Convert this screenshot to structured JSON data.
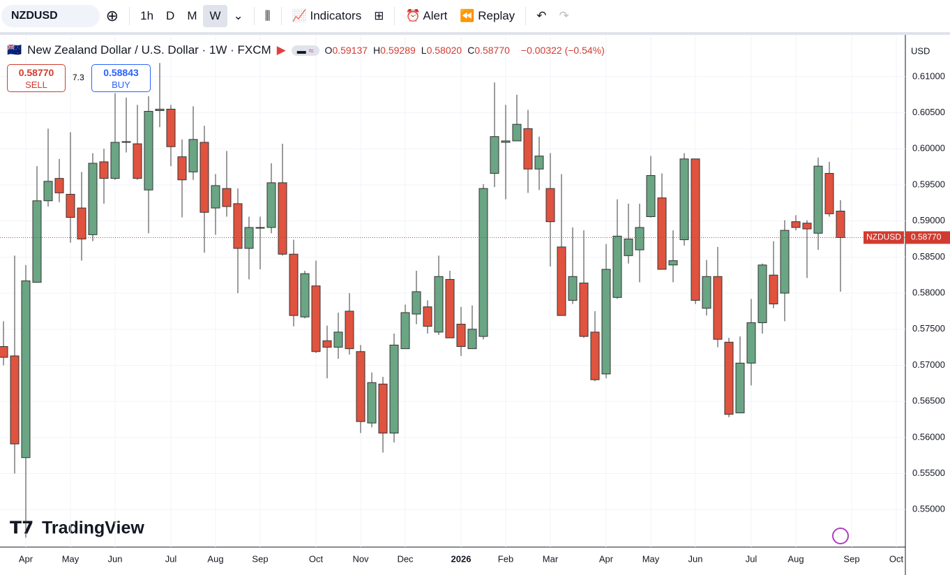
{
  "toolbar": {
    "symbol": "NZDUSD",
    "intervals": [
      "1h",
      "D",
      "M",
      "W"
    ],
    "active_interval": "W",
    "buttons": [
      "Indicators",
      "Alert",
      "Replay"
    ]
  },
  "legend": {
    "title": "New Zealand Dollar / U.S. Dollar · 1W · FXCM",
    "ohlc": [
      {
        "key": "O",
        "value": "0.59137"
      },
      {
        "key": "H",
        "value": "0.59289"
      },
      {
        "key": "L",
        "value": "0.58020"
      },
      {
        "key": "C",
        "value": "0.58770"
      }
    ],
    "change": "−0.00322 (−0.54%)"
  },
  "trade": {
    "sell_price": "0.58770",
    "sell": "SELL",
    "spread": "7.3",
    "buy_price": "0.58843",
    "buy": "BUY"
  },
  "currency": "USD",
  "brand": "TradingView",
  "chart_data": {
    "type": "candlestick",
    "categories": [
      null,
      null,
      "Apr",
      null,
      null,
      null,
      "May",
      null,
      null,
      null,
      "Jun",
      null,
      null,
      null,
      null,
      "Jul",
      null,
      null,
      null,
      "Aug",
      null,
      null,
      null,
      "Sep",
      null,
      null,
      null,
      null,
      "Oct",
      null,
      null,
      null,
      "Nov",
      null,
      null,
      null,
      "Dec",
      null,
      null,
      null,
      null,
      "2026",
      null,
      null,
      null,
      "Feb",
      null,
      null,
      null,
      "Mar",
      null,
      null,
      null,
      null,
      "Apr",
      null,
      null,
      null,
      "May",
      null,
      null,
      null,
      "Jun",
      null,
      null,
      null,
      null,
      "Jul",
      null,
      null,
      null,
      "Aug",
      null,
      null,
      null,
      null,
      "Sep",
      null,
      null,
      null,
      "Oct"
    ],
    "open": [
      0.5726,
      0.5713,
      0.5572,
      0.5815,
      0.5928,
      0.5959,
      0.5937,
      0.5918,
      0.5881,
      0.5982,
      0.5959,
      0.6009,
      0.6007,
      0.5943,
      0.6053,
      0.6055,
      0.5989,
      0.5968,
      0.6009,
      0.5918,
      0.5945,
      0.5924,
      0.5862,
      0.589,
      0.5891,
      0.5953,
      0.5854,
      0.5767,
      0.581,
      0.5734,
      0.5725,
      0.5775,
      0.5719,
      0.562,
      0.5674,
      0.5606,
      0.5723,
      0.5771,
      0.5781,
      0.5746,
      0.5819,
      0.5757,
      0.5723,
      0.574,
      0.5966,
      0.6009,
      0.6011,
      0.6028,
      0.5972,
      0.5945,
      0.5864,
      0.579,
      0.5814,
      0.5746,
      0.5688,
      0.5794,
      0.5852,
      0.586,
      0.5906,
      0.5932,
      0.5839,
      0.5874,
      0.5986,
      0.5779,
      0.5823,
      0.5732,
      0.5634,
      0.5703,
      0.5759,
      0.5825,
      0.58,
      0.5899,
      0.5897,
      0.5883,
      0.5966,
      0.59137,
      null,
      null,
      null,
      null,
      null
    ],
    "high": [
      0.5761,
      0.5852,
      0.5839,
      0.5976,
      0.6028,
      0.5986,
      0.6023,
      0.5968,
      0.5994,
      0.6,
      0.6077,
      0.6071,
      0.6061,
      0.6073,
      0.6119,
      0.6061,
      0.6013,
      0.6059,
      0.6032,
      0.5965,
      0.5997,
      0.5945,
      0.5906,
      0.5906,
      0.598,
      0.6007,
      0.5874,
      0.5831,
      0.5845,
      0.5755,
      0.5773,
      0.58,
      0.5728,
      0.569,
      0.5684,
      0.5744,
      0.5784,
      0.5831,
      0.579,
      0.5852,
      0.5831,
      0.5781,
      0.5783,
      0.5951,
      0.6092,
      0.6061,
      0.6075,
      0.6054,
      0.6017,
      0.5994,
      0.5965,
      0.5891,
      0.5887,
      0.5775,
      0.5868,
      0.593,
      0.5924,
      0.5924,
      0.599,
      0.5966,
      0.5887,
      0.5994,
      0.5986,
      0.5846,
      0.5864,
      0.5738,
      0.574,
      0.5792,
      0.5841,
      0.5872,
      0.5901,
      0.5908,
      0.5901,
      0.5988,
      0.5982,
      0.59289,
      null,
      null,
      null,
      null,
      null
    ],
    "low": [
      0.57,
      0.555,
      0.5461,
      0.5815,
      0.592,
      0.5926,
      0.587,
      0.5845,
      0.5872,
      0.5924,
      0.5957,
      0.5995,
      0.5957,
      0.5883,
      0.603,
      0.5976,
      0.5905,
      0.5957,
      0.5856,
      0.5881,
      0.5906,
      0.58,
      0.5819,
      0.5833,
      0.5883,
      0.5852,
      0.5754,
      0.5765,
      0.5717,
      0.5682,
      0.5709,
      0.5715,
      0.5606,
      0.5614,
      0.5579,
      0.5593,
      0.5723,
      0.5757,
      0.5744,
      0.5742,
      0.5738,
      0.5713,
      0.5723,
      0.5736,
      0.5947,
      0.593,
      0.6011,
      0.5939,
      0.5943,
      0.5837,
      0.5769,
      0.5785,
      0.5738,
      0.5678,
      0.5682,
      0.5792,
      0.5841,
      0.5815,
      0.5905,
      0.5833,
      0.5815,
      0.5866,
      0.5785,
      0.5769,
      0.5725,
      0.5628,
      0.5634,
      0.5672,
      0.5744,
      0.5779,
      0.5761,
      0.5887,
      0.5821,
      0.586,
      0.5906,
      0.5802,
      null,
      null,
      null,
      null,
      null
    ],
    "close": [
      0.5711,
      0.5591,
      0.5817,
      0.5928,
      0.5955,
      0.5939,
      0.5905,
      0.5875,
      0.598,
      0.5959,
      0.6009,
      0.601,
      0.5959,
      0.6052,
      0.6055,
      0.6003,
      0.5957,
      0.6013,
      0.5912,
      0.5949,
      0.592,
      0.5862,
      0.5891,
      0.5891,
      0.5953,
      0.5854,
      0.5769,
      0.5827,
      0.5719,
      0.5725,
      0.5746,
      0.5723,
      0.5622,
      0.5676,
      0.5606,
      0.5728,
      0.5773,
      0.5802,
      0.5754,
      0.5823,
      0.5738,
      0.5726,
      0.575,
      0.5945,
      0.6017,
      0.6011,
      0.6034,
      0.5972,
      0.599,
      0.5899,
      0.5769,
      0.5823,
      0.574,
      0.568,
      0.5833,
      0.5879,
      0.5875,
      0.5891,
      0.5963,
      0.5833,
      0.5845,
      0.5986,
      0.579,
      0.5823,
      0.5736,
      0.5632,
      0.5703,
      0.5759,
      0.5839,
      0.5785,
      0.5887,
      0.5891,
      0.5889,
      0.5976,
      0.591,
      0.5877,
      null,
      null,
      null,
      null,
      null
    ],
    "up_color": "#6aa584",
    "down_color": "#e0533f",
    "last_price": {
      "name": "NZDUSD",
      "label": "0.58770"
    },
    "ylim": [
      0.5448,
      0.6156
    ],
    "yticks": [
      {
        "value": 0.55,
        "label": "0.55000"
      },
      {
        "value": 0.555,
        "label": "0.55500"
      },
      {
        "value": 0.56,
        "label": "0.56000"
      },
      {
        "value": 0.565,
        "label": "0.56500"
      },
      {
        "value": 0.57,
        "label": "0.57000"
      },
      {
        "value": 0.575,
        "label": "0.57500"
      },
      {
        "value": 0.58,
        "label": "0.58000"
      },
      {
        "value": 0.585,
        "label": "0.58500"
      },
      {
        "value": 0.59,
        "label": "0.59000"
      },
      {
        "value": 0.595,
        "label": "0.59500"
      },
      {
        "value": 0.6,
        "label": "0.60000"
      },
      {
        "value": 0.605,
        "label": "0.60500"
      },
      {
        "value": 0.61,
        "label": "0.61000"
      }
    ],
    "grid": true
  }
}
